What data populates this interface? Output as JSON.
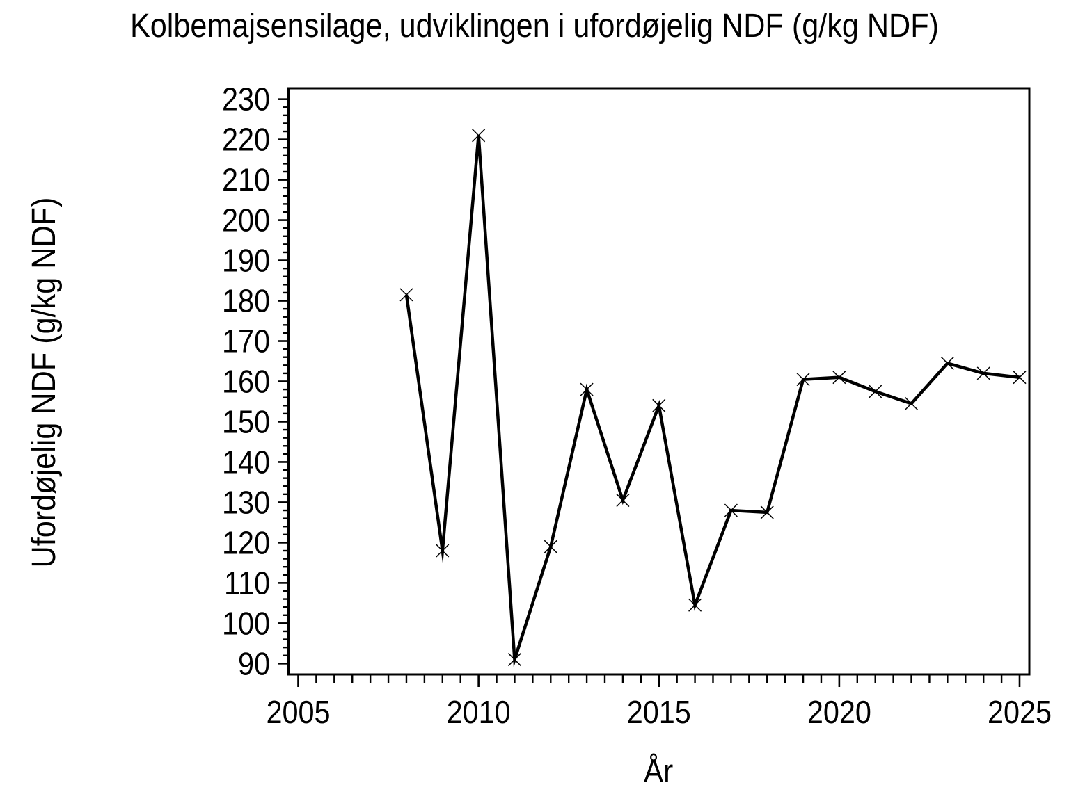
{
  "chart_data": {
    "type": "line",
    "title": "Kolbemajsensilage, udviklingen i ufordøjelig NDF (g/kg NDF)",
    "xlabel": "År",
    "ylabel": "Ufordøjelig NDF (g/kg NDF)",
    "x": [
      2008,
      2009,
      2010,
      2011,
      2012,
      2013,
      2014,
      2015,
      2016,
      2017,
      2018,
      2019,
      2020,
      2021,
      2022,
      2023,
      2024,
      2025
    ],
    "y": [
      181.5,
      118,
      221,
      91,
      119,
      158,
      130.5,
      154,
      104.5,
      128,
      127.5,
      160.5,
      161,
      157.5,
      154.5,
      164.5,
      162,
      161
    ],
    "xlim": [
      2004.73,
      2025.27
    ],
    "ylim": [
      87.3,
      232.7
    ],
    "xticks_major": [
      2005,
      2010,
      2015,
      2020,
      2025
    ],
    "xtick_minor_step": 0.5,
    "yticks_major": [
      90,
      100,
      110,
      120,
      130,
      140,
      150,
      160,
      170,
      180,
      190,
      200,
      210,
      220,
      230
    ],
    "ytick_minor_step": 2,
    "grid": false,
    "legend": "none",
    "marker": "x",
    "color": "#000000",
    "background": "#ffffff"
  }
}
